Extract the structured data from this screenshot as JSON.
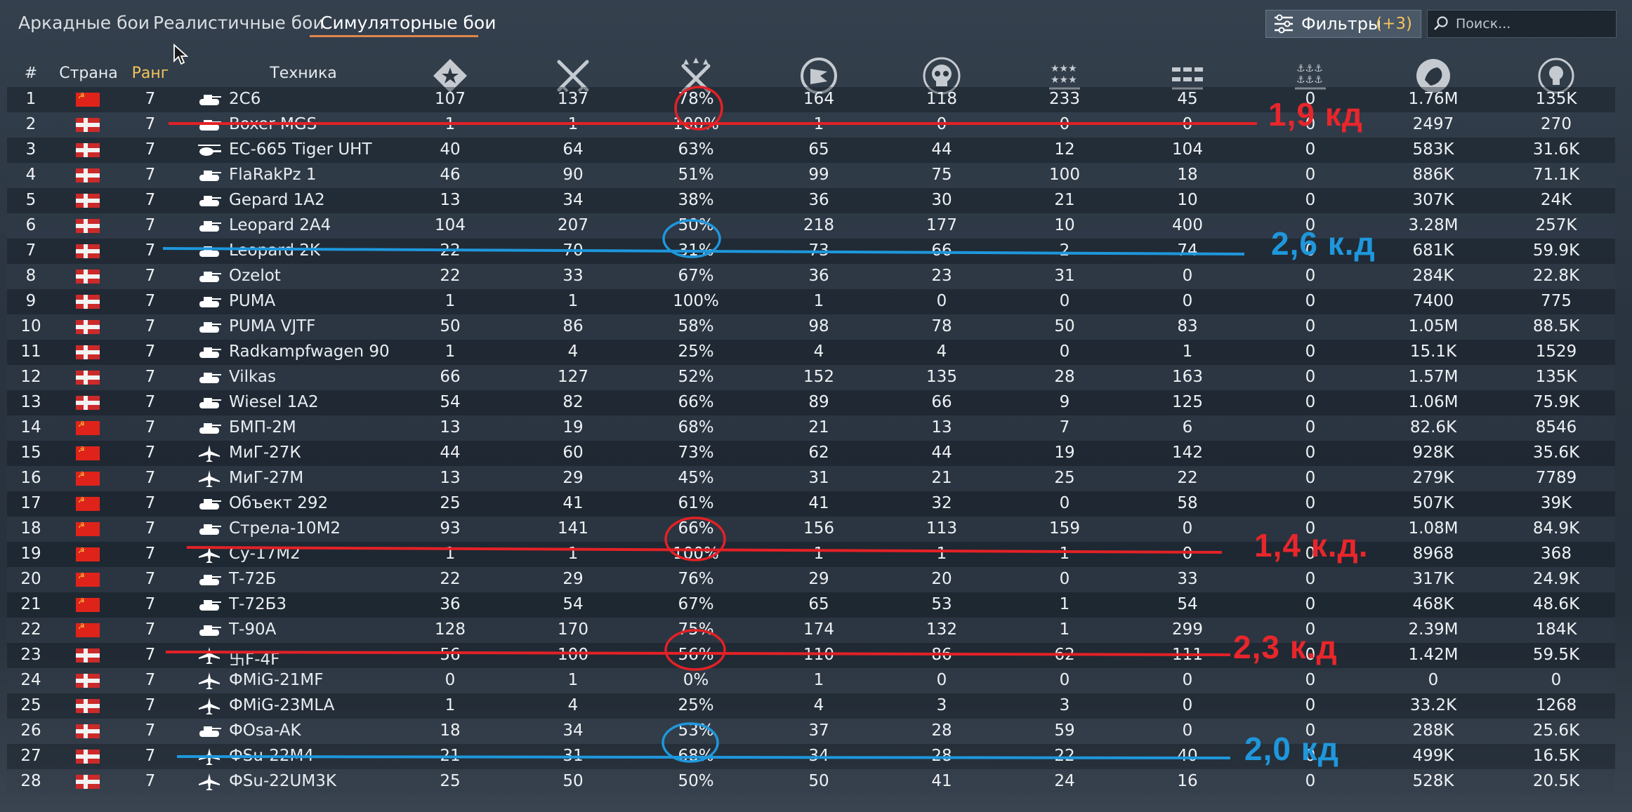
{
  "tabs": [
    {
      "label": "Аркадные бои",
      "active": false
    },
    {
      "label": "Реалистичные бои",
      "active": false
    },
    {
      "label": "Симуляторные бои",
      "active": true
    }
  ],
  "filters": {
    "label": "Фильтры",
    "count": "(+3)"
  },
  "search": {
    "placeholder": "Поиск..."
  },
  "columns": {
    "num": "#",
    "country": "Страна",
    "rank": "Ранг",
    "vehicle": "Техника",
    "stat_icons": [
      "respawns-icon",
      "battles-icon",
      "win-rate-icon",
      "missions-icon",
      "deaths-icon",
      "air-kills-icon",
      "ground-kills-icon",
      "naval-kills-icon",
      "lions-icon",
      "research-points-icon"
    ]
  },
  "rows": [
    {
      "num": "1",
      "country": "USSR",
      "rank": "7",
      "type": "tank",
      "name": "2С6",
      "v": [
        "107",
        "137",
        "78%",
        "164",
        "118",
        "233",
        "45",
        "0",
        "1.76M",
        "135K"
      ]
    },
    {
      "num": "2",
      "country": "Germany",
      "rank": "7",
      "type": "tank",
      "name": "Boxer MGS",
      "v": [
        "1",
        "1",
        "100%",
        "1",
        "0",
        "0",
        "0",
        "0",
        "2497",
        "270"
      ]
    },
    {
      "num": "3",
      "country": "Germany",
      "rank": "7",
      "type": "heli",
      "name": "EC-665 Tiger UHT",
      "v": [
        "40",
        "64",
        "63%",
        "65",
        "44",
        "12",
        "104",
        "0",
        "583K",
        "31.6K"
      ]
    },
    {
      "num": "4",
      "country": "Germany",
      "rank": "7",
      "type": "tank",
      "name": "FlaRakPz 1",
      "v": [
        "46",
        "90",
        "51%",
        "99",
        "75",
        "100",
        "18",
        "0",
        "886K",
        "71.1K"
      ]
    },
    {
      "num": "5",
      "country": "Germany",
      "rank": "7",
      "type": "tank",
      "name": "Gepard 1A2",
      "v": [
        "13",
        "34",
        "38%",
        "36",
        "30",
        "21",
        "10",
        "0",
        "307K",
        "24K"
      ]
    },
    {
      "num": "6",
      "country": "Germany",
      "rank": "7",
      "type": "tank",
      "name": "Leopard 2A4",
      "v": [
        "104",
        "207",
        "50%",
        "218",
        "177",
        "10",
        "400",
        "0",
        "3.28M",
        "257K"
      ]
    },
    {
      "num": "7",
      "country": "Germany",
      "rank": "7",
      "type": "tank",
      "name": "Leopard 2K",
      "v": [
        "22",
        "70",
        "31%",
        "73",
        "66",
        "2",
        "74",
        "0",
        "681K",
        "59.9K"
      ]
    },
    {
      "num": "8",
      "country": "Germany",
      "rank": "7",
      "type": "tank",
      "name": "Ozelot",
      "v": [
        "22",
        "33",
        "67%",
        "36",
        "23",
        "31",
        "0",
        "0",
        "284K",
        "22.8K"
      ]
    },
    {
      "num": "9",
      "country": "Germany",
      "rank": "7",
      "type": "tank",
      "name": "PUMA",
      "v": [
        "1",
        "1",
        "100%",
        "1",
        "0",
        "0",
        "0",
        "0",
        "7400",
        "775"
      ]
    },
    {
      "num": "10",
      "country": "Germany",
      "rank": "7",
      "type": "tank",
      "name": "PUMA VJTF",
      "v": [
        "50",
        "86",
        "58%",
        "98",
        "78",
        "50",
        "83",
        "0",
        "1.05M",
        "88.5K"
      ]
    },
    {
      "num": "11",
      "country": "Germany",
      "rank": "7",
      "type": "tank",
      "name": "Radkampfwagen 90",
      "v": [
        "1",
        "4",
        "25%",
        "4",
        "4",
        "0",
        "1",
        "0",
        "15.1K",
        "1529"
      ]
    },
    {
      "num": "12",
      "country": "Germany",
      "rank": "7",
      "type": "tank",
      "name": "Vilkas",
      "v": [
        "66",
        "127",
        "52%",
        "152",
        "135",
        "28",
        "163",
        "0",
        "1.57M",
        "135K"
      ]
    },
    {
      "num": "13",
      "country": "Germany",
      "rank": "7",
      "type": "tank",
      "name": "Wiesel 1A2",
      "v": [
        "54",
        "82",
        "66%",
        "89",
        "66",
        "9",
        "125",
        "0",
        "1.06M",
        "75.9K"
      ]
    },
    {
      "num": "14",
      "country": "USSR",
      "rank": "7",
      "type": "tank",
      "name": "БМП-2М",
      "v": [
        "13",
        "19",
        "68%",
        "21",
        "13",
        "7",
        "6",
        "0",
        "82.6K",
        "8546"
      ]
    },
    {
      "num": "15",
      "country": "USSR",
      "rank": "7",
      "type": "jet",
      "name": "МиГ-27К",
      "v": [
        "44",
        "60",
        "73%",
        "62",
        "44",
        "19",
        "142",
        "0",
        "928K",
        "35.6K"
      ]
    },
    {
      "num": "16",
      "country": "USSR",
      "rank": "7",
      "type": "jet",
      "name": "МиГ-27М",
      "v": [
        "13",
        "29",
        "45%",
        "31",
        "21",
        "25",
        "22",
        "0",
        "279K",
        "7789"
      ]
    },
    {
      "num": "17",
      "country": "USSR",
      "rank": "7",
      "type": "tank",
      "name": "Объект 292",
      "v": [
        "25",
        "41",
        "61%",
        "41",
        "32",
        "0",
        "58",
        "0",
        "507K",
        "39K"
      ]
    },
    {
      "num": "18",
      "country": "USSR",
      "rank": "7",
      "type": "tank",
      "name": "Стрела-10М2",
      "v": [
        "93",
        "141",
        "66%",
        "156",
        "113",
        "159",
        "0",
        "0",
        "1.08M",
        "84.9K"
      ]
    },
    {
      "num": "19",
      "country": "USSR",
      "rank": "7",
      "type": "jet",
      "name": "Су-17М2",
      "v": [
        "1",
        "1",
        "100%",
        "1",
        "1",
        "1",
        "0",
        "0",
        "8968",
        "368"
      ]
    },
    {
      "num": "20",
      "country": "USSR",
      "rank": "7",
      "type": "tank",
      "name": "Т-72Б",
      "v": [
        "22",
        "29",
        "76%",
        "29",
        "20",
        "0",
        "33",
        "0",
        "317K",
        "24.9K"
      ]
    },
    {
      "num": "21",
      "country": "USSR",
      "rank": "7",
      "type": "tank",
      "name": "Т-72Б3",
      "v": [
        "36",
        "54",
        "67%",
        "65",
        "53",
        "1",
        "54",
        "0",
        "468K",
        "48.6K"
      ]
    },
    {
      "num": "22",
      "country": "USSR",
      "rank": "7",
      "type": "tank",
      "name": "Т-90А",
      "v": [
        "128",
        "170",
        "75%",
        "174",
        "132",
        "1",
        "299",
        "0",
        "2.39M",
        "184K"
      ]
    },
    {
      "num": "23",
      "country": "Germany",
      "rank": "7",
      "type": "jet",
      "name": "卐F-4F",
      "v": [
        "56",
        "100",
        "56%",
        "110",
        "86",
        "62",
        "111",
        "0",
        "1.42M",
        "59.5K"
      ]
    },
    {
      "num": "24",
      "country": "Germany",
      "rank": "7",
      "type": "jet",
      "name": "ФMiG-21MF",
      "v": [
        "0",
        "1",
        "0%",
        "1",
        "0",
        "0",
        "0",
        "0",
        "0",
        "0"
      ]
    },
    {
      "num": "25",
      "country": "Germany",
      "rank": "7",
      "type": "jet",
      "name": "ФMiG-23MLA",
      "v": [
        "1",
        "4",
        "25%",
        "4",
        "3",
        "3",
        "0",
        "0",
        "33.2K",
        "1268"
      ]
    },
    {
      "num": "26",
      "country": "Germany",
      "rank": "7",
      "type": "tank",
      "name": "ФOsa-AK",
      "v": [
        "18",
        "34",
        "53%",
        "37",
        "28",
        "59",
        "0",
        "0",
        "288K",
        "25.6K"
      ]
    },
    {
      "num": "27",
      "country": "Germany",
      "rank": "7",
      "type": "jet",
      "name": "ФSu-22M4",
      "v": [
        "21",
        "31",
        "68%",
        "34",
        "28",
        "22",
        "40",
        "0",
        "499K",
        "16.5K"
      ]
    },
    {
      "num": "28",
      "country": "Germany",
      "rank": "7",
      "type": "jet",
      "name": "ФSu-22UM3K",
      "v": [
        "25",
        "50",
        "50%",
        "50",
        "41",
        "24",
        "16",
        "0",
        "528K",
        "20.5K"
      ]
    }
  ],
  "annotations": [
    {
      "text": "1,9 кд",
      "color": "#e8262b"
    },
    {
      "text": "2,6 к.д",
      "color": "#1e97dc"
    },
    {
      "text": "1,4 к.д.",
      "color": "#e8262b"
    },
    {
      "text": "2,3 к.д",
      "color": "#e8262b"
    },
    {
      "text": "2,0 кд",
      "color": "#1e97dc"
    }
  ]
}
